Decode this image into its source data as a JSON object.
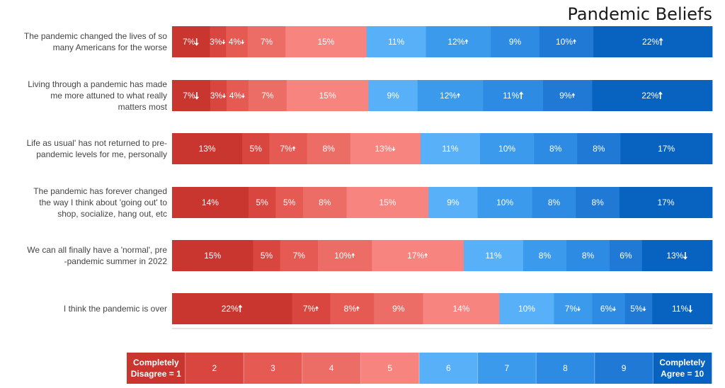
{
  "chart_data": {
    "type": "bar",
    "orientation": "horizontal",
    "stacked": "percent",
    "title": "Pandemic Beliefs",
    "categories": [
      "The pandemic changed the lives of so many Americans for the worse",
      "Living through a pandemic has made me more attuned to what really matters most",
      "Life as usual' has not returned to pre-pandemic levels for me, personally",
      "The pandemic has forever changed the way I think about 'going out' to shop, socialize, hang out, etc",
      "We can all finally have a 'normal', pre-pandemic summer in 2022",
      "I think the pandemic is over"
    ],
    "category_lines": [
      [
        "The pandemic changed the lives of so",
        "many Americans for the worse"
      ],
      [
        "Living through a pandemic has made",
        "me more attuned to what really",
        "matters most"
      ],
      [
        "Life as usual' has not returned to pre-",
        "pandemic levels for me, personally"
      ],
      [
        "The pandemic has forever changed",
        "the way I think about 'going out' to",
        "shop, socialize, hang out, etc"
      ],
      [
        "We can all finally have a 'normal', pre",
        "-pandemic summer in 2022"
      ],
      [
        "I think the pandemic is over"
      ]
    ],
    "scale_labels": [
      "Completely Disagree = 1",
      "2",
      "3",
      "4",
      "5",
      "6",
      "7",
      "8",
      "9",
      "Completely Agree = 10"
    ],
    "legend_lines": [
      [
        "Completely",
        "Disagree = 1"
      ],
      [
        "2"
      ],
      [
        "3"
      ],
      [
        "4"
      ],
      [
        "5"
      ],
      [
        "6"
      ],
      [
        "7"
      ],
      [
        "8"
      ],
      [
        "9"
      ],
      [
        "Completely",
        "Agree = 10"
      ]
    ],
    "colors": [
      "#c9352f",
      "#d9463f",
      "#e55b53",
      "#ec6d66",
      "#f8847f",
      "#58b0f8",
      "#3b9aeb",
      "#2d8be3",
      "#1f79d5",
      "#0863c0"
    ],
    "values": [
      [
        7,
        3,
        4,
        7,
        15,
        11,
        12,
        9,
        10,
        22
      ],
      [
        7,
        3,
        4,
        7,
        15,
        9,
        12,
        11,
        9,
        22
      ],
      [
        13,
        5,
        7,
        8,
        13,
        11,
        10,
        8,
        8,
        17
      ],
      [
        14,
        5,
        5,
        8,
        15,
        9,
        10,
        8,
        8,
        17
      ],
      [
        15,
        5,
        7,
        10,
        17,
        11,
        8,
        8,
        6,
        13
      ],
      [
        22,
        7,
        8,
        9,
        14,
        10,
        7,
        6,
        5,
        11
      ]
    ],
    "markers": [
      [
        "down-large",
        "down-small",
        "down-small",
        "",
        "",
        "",
        "up-small",
        "",
        "up-small",
        "up-large"
      ],
      [
        "down-large",
        "down-small",
        "down-small",
        "",
        "",
        "",
        "up-small",
        "up-large",
        "up-small",
        "up-large"
      ],
      [
        "",
        "",
        "up-small",
        "",
        "down-small",
        "",
        "",
        "",
        "",
        ""
      ],
      [
        "",
        "",
        "",
        "",
        "",
        "",
        "",
        "",
        "",
        ""
      ],
      [
        "",
        "",
        "",
        "up-small",
        "up-small",
        "",
        "",
        "",
        "",
        "down-large"
      ],
      [
        "up-large",
        "up-small",
        "up-small",
        "",
        "",
        "",
        "down-small",
        "down-small",
        "down-small",
        "down-large"
      ]
    ],
    "legend_placement": "bottom",
    "grid": false
  }
}
